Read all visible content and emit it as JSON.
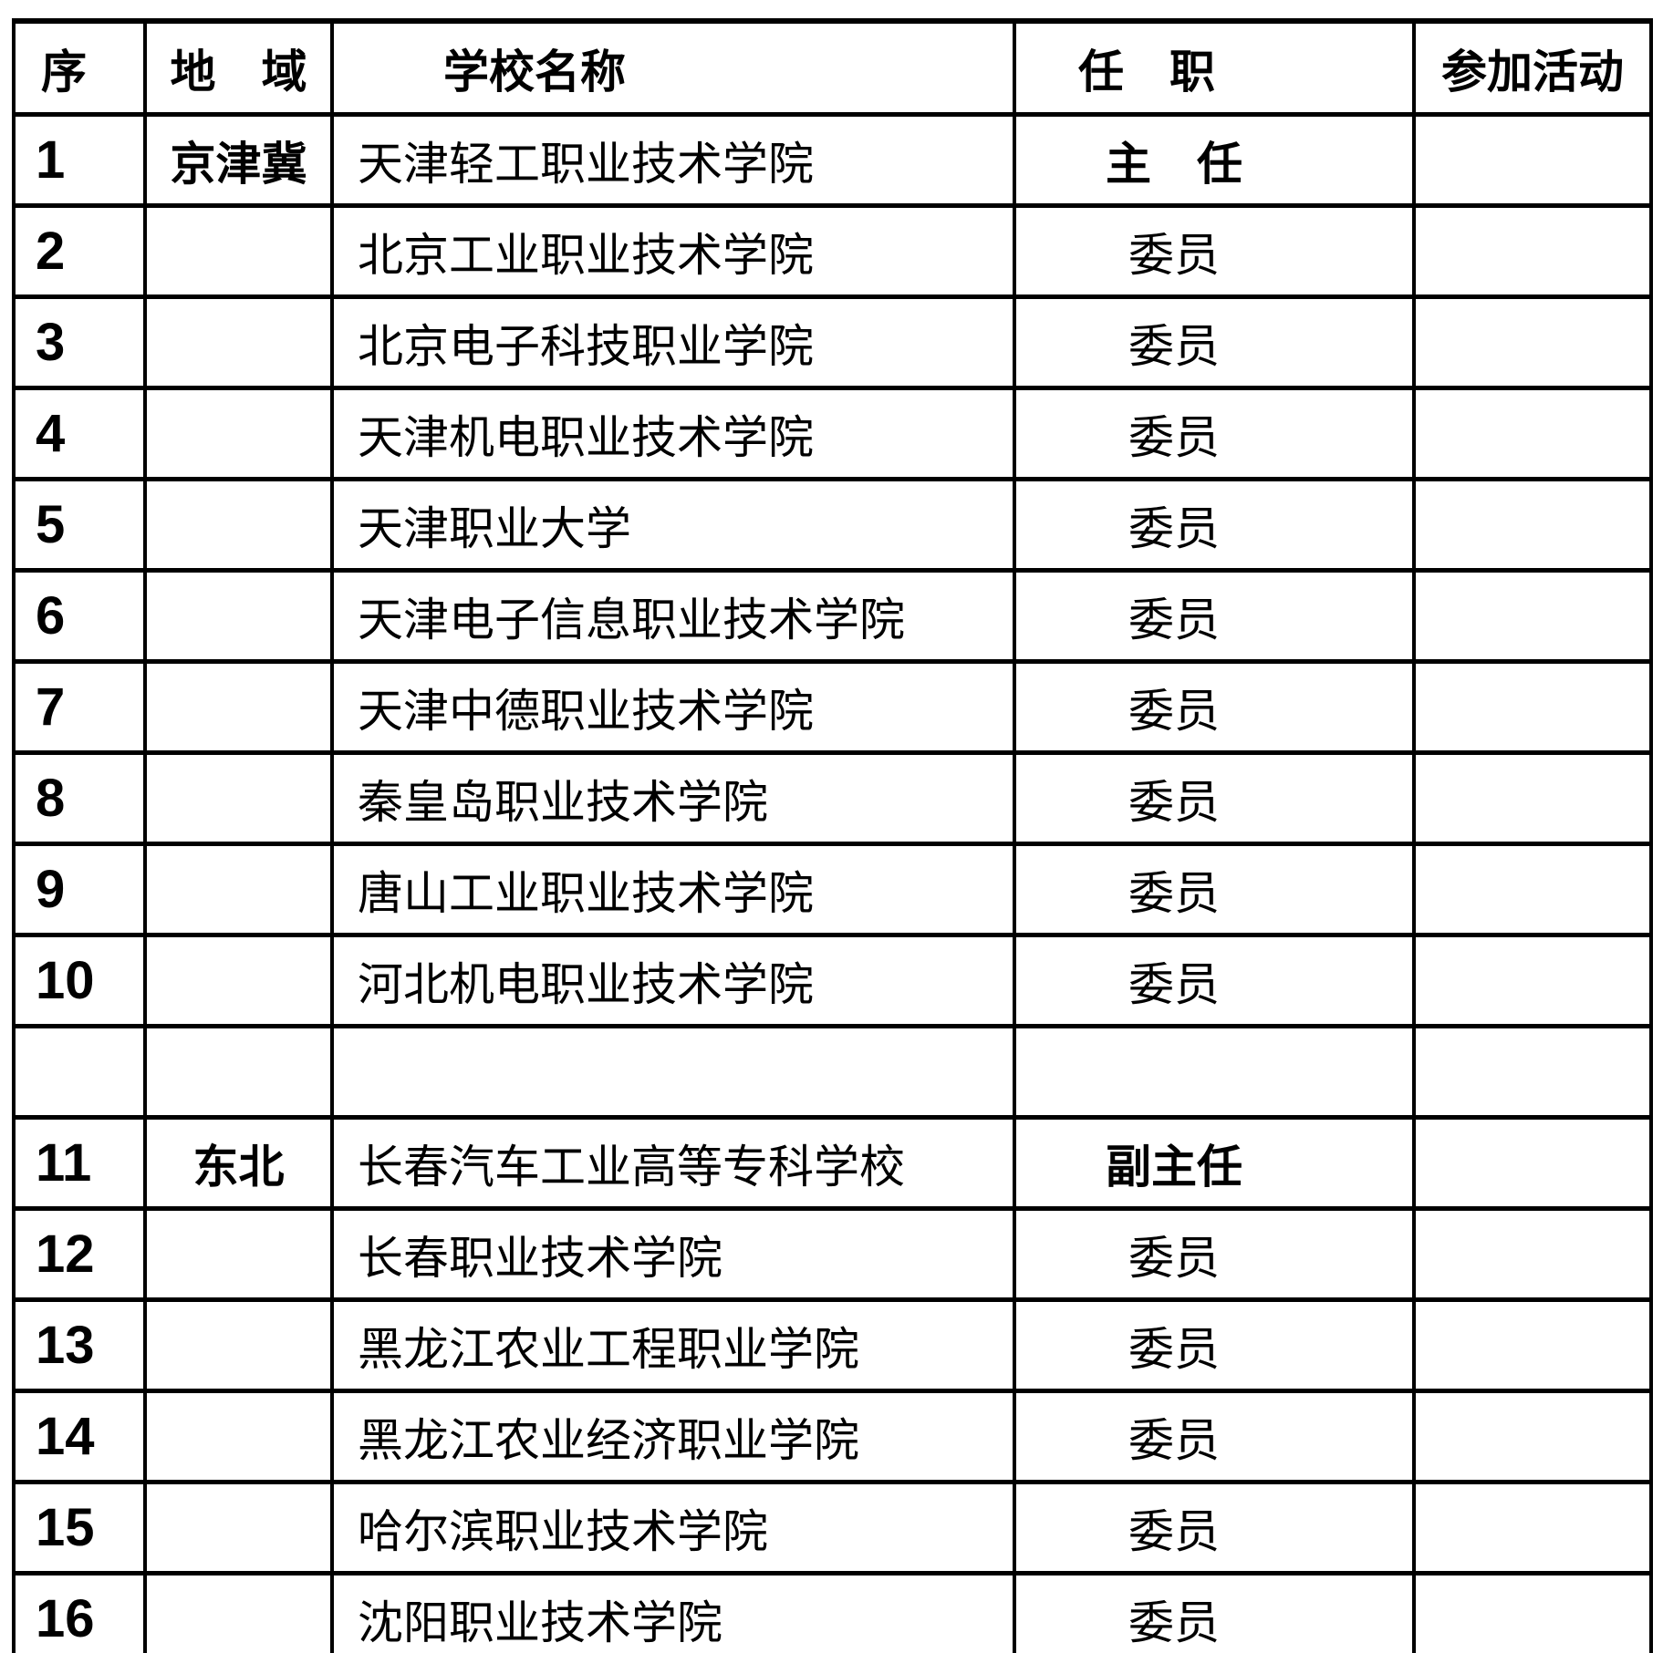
{
  "page": {
    "background": "#ffffff",
    "text_color": "#000000",
    "border_color": "#000000"
  },
  "table": {
    "columns": [
      {
        "key": "num",
        "label": "序"
      },
      {
        "key": "region",
        "label": "地　域"
      },
      {
        "key": "school",
        "label": "学校名称"
      },
      {
        "key": "position",
        "label": "任　职"
      },
      {
        "key": "activity",
        "label": "参加活动"
      }
    ],
    "rows": [
      {
        "num": "1",
        "region": "京津冀",
        "school": "天津轻工职业技术学院",
        "position": "主　任",
        "activity": "",
        "emphasis": true
      },
      {
        "num": "2",
        "region": "",
        "school": "北京工业职业技术学院",
        "position": "委员",
        "activity": "",
        "emphasis": false
      },
      {
        "num": "3",
        "region": "",
        "school": "北京电子科技职业学院",
        "position": "委员",
        "activity": "",
        "emphasis": false
      },
      {
        "num": "4",
        "region": "",
        "school": "天津机电职业技术学院",
        "position": "委员",
        "activity": "",
        "emphasis": false
      },
      {
        "num": "5",
        "region": "",
        "school": "天津职业大学",
        "position": "委员",
        "activity": "",
        "emphasis": false
      },
      {
        "num": "6",
        "region": "",
        "school": "天津电子信息职业技术学院",
        "position": "委员",
        "activity": "",
        "emphasis": false
      },
      {
        "num": "7",
        "region": "",
        "school": "天津中德职业技术学院",
        "position": "委员",
        "activity": "",
        "emphasis": false
      },
      {
        "num": "8",
        "region": "",
        "school": "秦皇岛职业技术学院",
        "position": "委员",
        "activity": "",
        "emphasis": false
      },
      {
        "num": "9",
        "region": "",
        "school": "唐山工业职业技术学院",
        "position": "委员",
        "activity": "",
        "emphasis": false
      },
      {
        "num": "10",
        "region": "",
        "school": "河北机电职业技术学院",
        "position": "委员",
        "activity": "",
        "emphasis": false
      },
      {
        "num": "",
        "region": "",
        "school": "",
        "position": "",
        "activity": "",
        "emphasis": false
      },
      {
        "num": "11",
        "region": "东北",
        "school": "长春汽车工业高等专科学校",
        "position": "副主任",
        "activity": "",
        "emphasis": true
      },
      {
        "num": "12",
        "region": "",
        "school": "长春职业技术学院",
        "position": "委员",
        "activity": "",
        "emphasis": false
      },
      {
        "num": "13",
        "region": "",
        "school": "黑龙江农业工程职业学院",
        "position": "委员",
        "activity": "",
        "emphasis": false
      },
      {
        "num": "14",
        "region": "",
        "school": "黑龙江农业经济职业学院",
        "position": "委员",
        "activity": "",
        "emphasis": false
      },
      {
        "num": "15",
        "region": "",
        "school": "哈尔滨职业技术学院",
        "position": "委员",
        "activity": "",
        "emphasis": false
      },
      {
        "num": "16",
        "region": "",
        "school": "沈阳职业技术学院",
        "position": "委员",
        "activity": "",
        "emphasis": false
      }
    ]
  }
}
